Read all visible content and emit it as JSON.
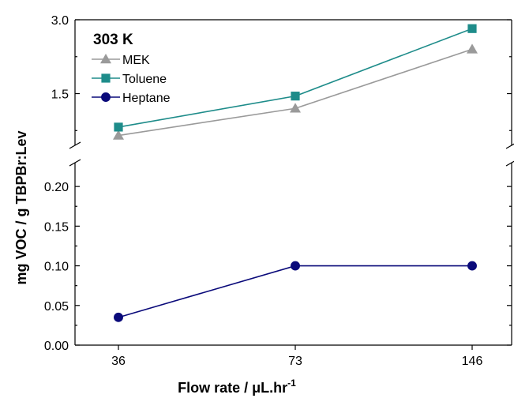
{
  "chart_data": {
    "type": "line",
    "legend_title": "303 K",
    "xlabel": "Flow rate  / μL.hr",
    "xlabel_sup": "-1",
    "ylabel": "mg VOC / g TBPBr:Lev",
    "categories": [
      "36",
      "73",
      "146"
    ],
    "x_values": [
      36,
      73,
      146
    ],
    "y_axis_break": true,
    "upper_ylim": [
      0.45,
      3.0
    ],
    "upper_ticks": [
      "1.5",
      "3.0"
    ],
    "lower_ylim": [
      0.0,
      0.23
    ],
    "lower_ticks": [
      "0.00",
      "0.05",
      "0.10",
      "0.15",
      "0.20"
    ],
    "series": [
      {
        "name": "MEK",
        "values": [
          0.65,
          1.2,
          2.4
        ],
        "color": "#9a9a9a",
        "marker": "triangle",
        "panel": "upper"
      },
      {
        "name": "Toluene",
        "values": [
          0.82,
          1.45,
          2.82
        ],
        "color": "#1e8c8a",
        "marker": "square",
        "panel": "upper"
      },
      {
        "name": "Heptane",
        "values": [
          0.035,
          0.1,
          0.1
        ],
        "color": "#0a0a7a",
        "marker": "circle",
        "panel": "lower"
      }
    ],
    "grid": false,
    "legend_position": "top-left"
  }
}
